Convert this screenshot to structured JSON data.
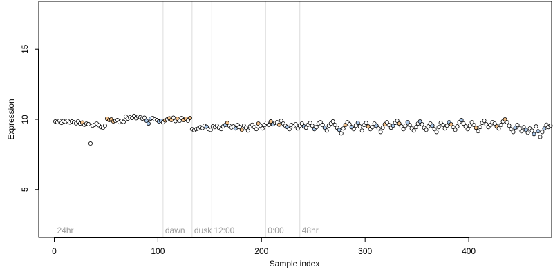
{
  "chart_data": {
    "type": "scatter",
    "title": "",
    "xlabel": "Sample index",
    "ylabel": "Expression",
    "xlim": [
      -15,
      480
    ],
    "ylim": [
      1.6,
      18.4
    ],
    "x_ticks": [
      0,
      100,
      200,
      300,
      400
    ],
    "y_ticks": [
      5,
      10,
      15
    ],
    "grid": false,
    "legend": "none",
    "colors": {
      "point_edge": "#000000",
      "default_fill": "#ffffff",
      "orange_fill": "#f5c28a",
      "blue_fill": "#a9c6e8",
      "annotation_line": "#dcdcdc",
      "annotation_text": "#9a9a9a"
    },
    "annotations": [
      {
        "label": "24hr",
        "x": 0
      },
      {
        "label": "dawn",
        "x": 105
      },
      {
        "label": "dusk",
        "x": 133
      },
      {
        "label": "12:00",
        "x": 152
      },
      {
        "label": "0:00",
        "x": 204
      },
      {
        "label": "48hr",
        "x": 237
      }
    ],
    "series": [
      {
        "values": [
          [
            1,
            9.85
          ],
          [
            3,
            9.8
          ],
          [
            5,
            9.9
          ],
          [
            7,
            9.75
          ],
          [
            9,
            9.88
          ],
          [
            11,
            9.82
          ],
          [
            13,
            9.9
          ],
          [
            15,
            9.78
          ],
          [
            17,
            9.85
          ],
          [
            19,
            9.8
          ],
          [
            21,
            9.72
          ],
          [
            23,
            9.86
          ],
          [
            25,
            9.7
          ],
          [
            27,
            9.78
          ],
          [
            29,
            9.62
          ],
          [
            31,
            9.7
          ],
          [
            33,
            9.66
          ],
          [
            35,
            8.28
          ],
          [
            37,
            9.55
          ],
          [
            39,
            9.62
          ],
          [
            41,
            9.7
          ],
          [
            43,
            9.58
          ],
          [
            45,
            9.45
          ],
          [
            47,
            9.4
          ],
          [
            49,
            9.55
          ],
          [
            51,
            10.05
          ],
          [
            53,
            9.95
          ],
          [
            55,
            10.0
          ],
          [
            57,
            9.85
          ],
          [
            59,
            9.9
          ],
          [
            61,
            9.95
          ],
          [
            63,
            9.8
          ],
          [
            65,
            9.9
          ],
          [
            67,
            9.82
          ],
          [
            69,
            10.2
          ],
          [
            71,
            10.05
          ],
          [
            73,
            10.15
          ],
          [
            75,
            10.1
          ],
          [
            77,
            10.25
          ],
          [
            79,
            10.08
          ],
          [
            81,
            10.2
          ],
          [
            83,
            10.15
          ],
          [
            85,
            10.05
          ],
          [
            87,
            10.12
          ],
          [
            89,
            9.9
          ],
          [
            91,
            9.7
          ],
          [
            93,
            10.05
          ],
          [
            95,
            10.1
          ],
          [
            97,
            10.0
          ],
          [
            99,
            9.95
          ],
          [
            101,
            9.85
          ],
          [
            103,
            9.9
          ],
          [
            105,
            9.8
          ],
          [
            107,
            9.92
          ],
          [
            109,
            10.0
          ],
          [
            111,
            10.08
          ],
          [
            113,
            9.95
          ],
          [
            115,
            10.12
          ],
          [
            117,
            9.88
          ],
          [
            119,
            10.05
          ],
          [
            121,
            9.9
          ],
          [
            123,
            10.1
          ],
          [
            125,
            9.95
          ],
          [
            127,
            10.05
          ],
          [
            129,
            9.9
          ],
          [
            131,
            10.1
          ],
          [
            133,
            9.3
          ],
          [
            135,
            9.22
          ],
          [
            137,
            9.3
          ],
          [
            139,
            9.35
          ],
          [
            141,
            9.45
          ],
          [
            143,
            9.38
          ],
          [
            145,
            9.55
          ],
          [
            147,
            9.48
          ],
          [
            149,
            9.3
          ],
          [
            151,
            9.25
          ],
          [
            153,
            9.5
          ],
          [
            155,
            9.45
          ],
          [
            157,
            9.55
          ],
          [
            159,
            9.4
          ],
          [
            161,
            9.3
          ],
          [
            163,
            9.5
          ],
          [
            165,
            9.6
          ],
          [
            167,
            9.75
          ],
          [
            169,
            9.55
          ],
          [
            171,
            9.42
          ],
          [
            173,
            9.5
          ],
          [
            175,
            9.35
          ],
          [
            177,
            9.6
          ],
          [
            179,
            9.45
          ],
          [
            181,
            9.25
          ],
          [
            183,
            9.55
          ],
          [
            185,
            9.4
          ],
          [
            187,
            9.2
          ],
          [
            189,
            9.5
          ],
          [
            191,
            9.62
          ],
          [
            193,
            9.45
          ],
          [
            195,
            9.3
          ],
          [
            197,
            9.7
          ],
          [
            199,
            9.55
          ],
          [
            201,
            9.35
          ],
          [
            203,
            9.6
          ],
          [
            205,
            9.75
          ],
          [
            207,
            9.6
          ],
          [
            209,
            9.85
          ],
          [
            211,
            9.65
          ],
          [
            213,
            9.75
          ],
          [
            215,
            9.8
          ],
          [
            217,
            9.62
          ],
          [
            219,
            9.9
          ],
          [
            221,
            9.7
          ],
          [
            223,
            9.55
          ],
          [
            225,
            9.45
          ],
          [
            227,
            9.3
          ],
          [
            229,
            9.6
          ],
          [
            231,
            9.5
          ],
          [
            233,
            9.65
          ],
          [
            235,
            9.35
          ],
          [
            237,
            9.55
          ],
          [
            239,
            9.7
          ],
          [
            241,
            9.5
          ],
          [
            243,
            9.4
          ],
          [
            245,
            9.62
          ],
          [
            247,
            9.75
          ],
          [
            249,
            9.55
          ],
          [
            251,
            9.3
          ],
          [
            253,
            9.45
          ],
          [
            255,
            9.7
          ],
          [
            257,
            9.8
          ],
          [
            259,
            9.6
          ],
          [
            261,
            9.4
          ],
          [
            263,
            9.2
          ],
          [
            265,
            9.55
          ],
          [
            267,
            9.7
          ],
          [
            269,
            9.85
          ],
          [
            271,
            9.6
          ],
          [
            273,
            9.4
          ],
          [
            275,
            9.25
          ],
          [
            277,
            9.0
          ],
          [
            279,
            9.35
          ],
          [
            281,
            9.6
          ],
          [
            283,
            9.8
          ],
          [
            285,
            9.65
          ],
          [
            287,
            9.45
          ],
          [
            289,
            9.3
          ],
          [
            291,
            9.55
          ],
          [
            293,
            9.75
          ],
          [
            295,
            9.5
          ],
          [
            297,
            9.2
          ],
          [
            299,
            9.6
          ],
          [
            301,
            9.75
          ],
          [
            303,
            9.5
          ],
          [
            305,
            9.3
          ],
          [
            307,
            9.45
          ],
          [
            309,
            9.7
          ],
          [
            311,
            9.55
          ],
          [
            313,
            9.35
          ],
          [
            315,
            9.1
          ],
          [
            317,
            9.4
          ],
          [
            319,
            9.65
          ],
          [
            321,
            9.8
          ],
          [
            323,
            9.6
          ],
          [
            325,
            9.4
          ],
          [
            327,
            9.55
          ],
          [
            329,
            9.75
          ],
          [
            331,
            9.9
          ],
          [
            333,
            9.7
          ],
          [
            335,
            9.5
          ],
          [
            337,
            9.3
          ],
          [
            339,
            9.55
          ],
          [
            341,
            9.8
          ],
          [
            343,
            9.6
          ],
          [
            345,
            9.35
          ],
          [
            347,
            9.2
          ],
          [
            349,
            9.45
          ],
          [
            351,
            9.7
          ],
          [
            353,
            9.85
          ],
          [
            355,
            9.65
          ],
          [
            357,
            9.4
          ],
          [
            359,
            9.25
          ],
          [
            361,
            9.5
          ],
          [
            363,
            9.7
          ],
          [
            365,
            9.55
          ],
          [
            367,
            9.3
          ],
          [
            369,
            9.1
          ],
          [
            371,
            9.45
          ],
          [
            373,
            9.75
          ],
          [
            375,
            9.6
          ],
          [
            377,
            9.35
          ],
          [
            379,
            9.55
          ],
          [
            381,
            9.8
          ],
          [
            383,
            9.65
          ],
          [
            385,
            9.45
          ],
          [
            387,
            9.25
          ],
          [
            389,
            9.5
          ],
          [
            391,
            9.8
          ],
          [
            393,
            9.95
          ],
          [
            395,
            9.7
          ],
          [
            397,
            9.5
          ],
          [
            399,
            9.3
          ],
          [
            401,
            9.55
          ],
          [
            403,
            9.8
          ],
          [
            405,
            9.6
          ],
          [
            407,
            9.4
          ],
          [
            409,
            9.15
          ],
          [
            411,
            9.45
          ],
          [
            413,
            9.75
          ],
          [
            415,
            9.9
          ],
          [
            417,
            9.65
          ],
          [
            419,
            9.45
          ],
          [
            421,
            9.6
          ],
          [
            423,
            9.8
          ],
          [
            425,
            9.7
          ],
          [
            427,
            9.5
          ],
          [
            429,
            9.35
          ],
          [
            431,
            9.6
          ],
          [
            433,
            9.85
          ],
          [
            435,
            10.0
          ],
          [
            437,
            9.8
          ],
          [
            439,
            9.55
          ],
          [
            441,
            9.3
          ],
          [
            443,
            9.1
          ],
          [
            445,
            9.4
          ],
          [
            447,
            9.6
          ],
          [
            449,
            9.35
          ],
          [
            451,
            9.15
          ],
          [
            453,
            9.45
          ],
          [
            455,
            9.25
          ],
          [
            457,
            9.05
          ],
          [
            459,
            9.35
          ],
          [
            461,
            9.2
          ],
          [
            463,
            8.95
          ],
          [
            465,
            9.5
          ],
          [
            467,
            9.15
          ],
          [
            469,
            8.75
          ],
          [
            471,
            9.1
          ],
          [
            473,
            9.35
          ],
          [
            475,
            9.62
          ],
          [
            477,
            9.45
          ],
          [
            479,
            9.55
          ]
        ],
        "orange_x": [
          27,
          51,
          53,
          55,
          57,
          107,
          111,
          113,
          119,
          125,
          127,
          131,
          167,
          181,
          197,
          209,
          217,
          281,
          303,
          319,
          333,
          383,
          407,
          427,
          435
        ],
        "blue_x": [
          89,
          91,
          93,
          101,
          103,
          147,
          165,
          175,
          211,
          225,
          241,
          251,
          261,
          275,
          287,
          293,
          311,
          327,
          341,
          353,
          365,
          381,
          393,
          445,
          455,
          463,
          467,
          473
        ]
      }
    ]
  }
}
